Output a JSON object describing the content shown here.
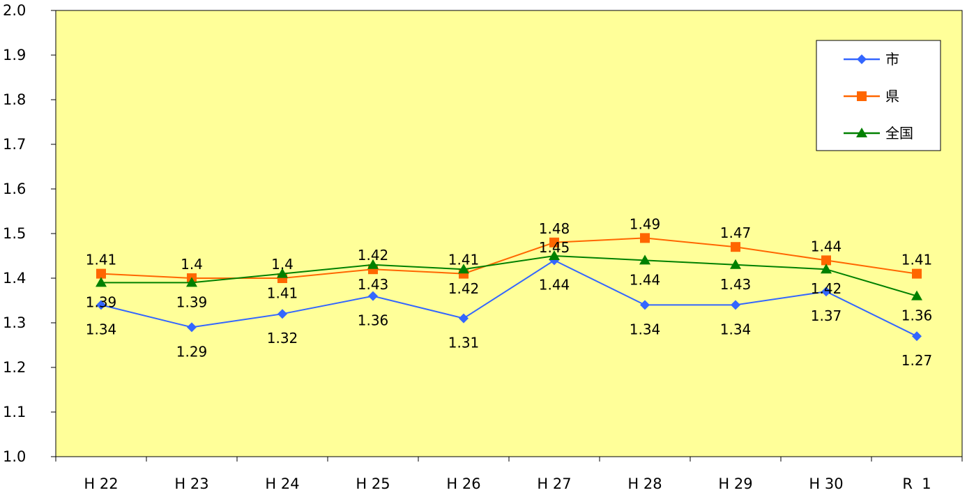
{
  "chart_data": {
    "type": "line",
    "categories": [
      "H 22",
      "H 23",
      "H 24",
      "H 25",
      "H 26",
      "H 27",
      "H 28",
      "H 29",
      "H 30",
      "R  1"
    ],
    "y_ticks": [
      "1.0",
      "1.1",
      "1.2",
      "1.3",
      "1.4",
      "1.5",
      "1.6",
      "1.7",
      "1.8",
      "1.9",
      "2.0"
    ],
    "ylim": [
      1.0,
      2.0
    ],
    "series": [
      {
        "name": "市",
        "color": "#3366ff",
        "marker": "diamond",
        "values": [
          1.34,
          1.29,
          1.32,
          1.36,
          1.31,
          1.44,
          1.34,
          1.34,
          1.37,
          1.27
        ],
        "labels": [
          "1.34",
          "1.29",
          "1.32",
          "1.36",
          "1.31",
          "1.44",
          "1.34",
          "1.34",
          "1.37",
          "1.27"
        ]
      },
      {
        "name": "県",
        "color": "#ff6600",
        "marker": "square",
        "values": [
          1.41,
          1.4,
          1.4,
          1.42,
          1.41,
          1.48,
          1.49,
          1.47,
          1.44,
          1.41
        ],
        "labels": [
          "1.41",
          "1.4",
          "1.4",
          "1.42",
          "1.41",
          "1.48",
          "1.49",
          "1.47",
          "1.44",
          "1.41"
        ]
      },
      {
        "name": "全国",
        "color": "#008000",
        "marker": "triangle",
        "values": [
          1.39,
          1.39,
          1.41,
          1.43,
          1.42,
          1.45,
          1.44,
          1.43,
          1.42,
          1.36
        ],
        "labels": [
          "1.39",
          "1.39",
          "1.41",
          "1.43",
          "1.42",
          "1.45",
          "1.44",
          "1.43",
          "1.42",
          "1.36"
        ]
      }
    ],
    "plot_background": "#ffff99",
    "grid": false,
    "legend_position": "top-right",
    "title": "",
    "xlabel": "",
    "ylabel": ""
  }
}
